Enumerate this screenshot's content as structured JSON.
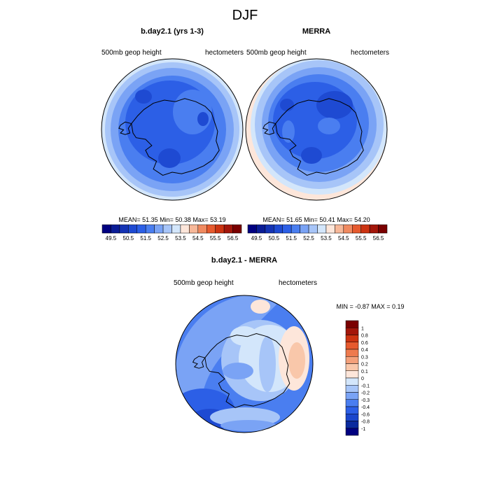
{
  "figure": {
    "title": "DJF"
  },
  "colors": {
    "seq": [
      "#000080",
      "#0a1c96",
      "#1433b4",
      "#1e4ad2",
      "#2c5fe6",
      "#4a7ef0",
      "#7aa3f5",
      "#a7c5f8",
      "#d3e6fb",
      "#fde6da",
      "#f7b899",
      "#f08a60",
      "#e65a2e",
      "#cc3311",
      "#a3160a",
      "#7a0000"
    ],
    "diff": [
      "#000080",
      "#0a2a9e",
      "#1a46cc",
      "#2c5fe6",
      "#4a7ef0",
      "#7aa3f5",
      "#a7c5f8",
      "#d3e6fb",
      "#fde6da",
      "#f9c7aa",
      "#f4a07a",
      "#ee7a4e",
      "#e65a2e",
      "#cc3311",
      "#a3160a",
      "#7a0000"
    ]
  },
  "chart_data": [
    {
      "type": "heatmap",
      "title": "b.day2.1 (yrs 1-3)",
      "left_label": "500mb geop height",
      "right_label": "hectometers",
      "stats": "MEAN=  51.35  Min=  50.38  Max=  53.19",
      "colorbar_labels": [
        "49.5",
        "50.5",
        "51.5",
        "52.5",
        "53.5",
        "54.5",
        "55.5",
        "56.5"
      ],
      "contour_levels": [
        49.5,
        50,
        50.5,
        51,
        51.5,
        52,
        52.5,
        53,
        53.5,
        54,
        54.5,
        55,
        55.5,
        56,
        56.5
      ],
      "mean": 51.35,
      "min": 50.38,
      "max": 53.19
    },
    {
      "type": "heatmap",
      "title": "MERRA",
      "left_label": "500mb geop height",
      "right_label": "hectometers",
      "stats": "MEAN=  51.65  Min=  50.41  Max=  54.20",
      "colorbar_labels": [
        "49.5",
        "50.5",
        "51.5",
        "52.5",
        "53.5",
        "54.5",
        "55.5",
        "56.5"
      ],
      "contour_levels": [
        49.5,
        50,
        50.5,
        51,
        51.5,
        52,
        52.5,
        53,
        53.5,
        54,
        54.5,
        55,
        55.5,
        56,
        56.5
      ],
      "mean": 51.65,
      "min": 50.41,
      "max": 54.2
    },
    {
      "type": "heatmap",
      "title": "b.day2.1 - MERRA",
      "left_label": "500mb geop height",
      "right_label": "hectometers",
      "stats": "MIN =  -0.87 MAX =   0.19",
      "colorbar_labels": [
        "1",
        "0.8",
        "0.6",
        "0.4",
        "0.3",
        "0.2",
        "0.1",
        "0",
        "-0.1",
        "-0.2",
        "-0.3",
        "-0.4",
        "-0.6",
        "-0.8",
        "-1"
      ],
      "contour_levels": [
        -1,
        -0.8,
        -0.6,
        -0.4,
        -0.3,
        -0.2,
        -0.1,
        0,
        0.1,
        0.2,
        0.3,
        0.4,
        0.6,
        0.8,
        1
      ],
      "min": -0.87,
      "max": 0.19
    }
  ]
}
